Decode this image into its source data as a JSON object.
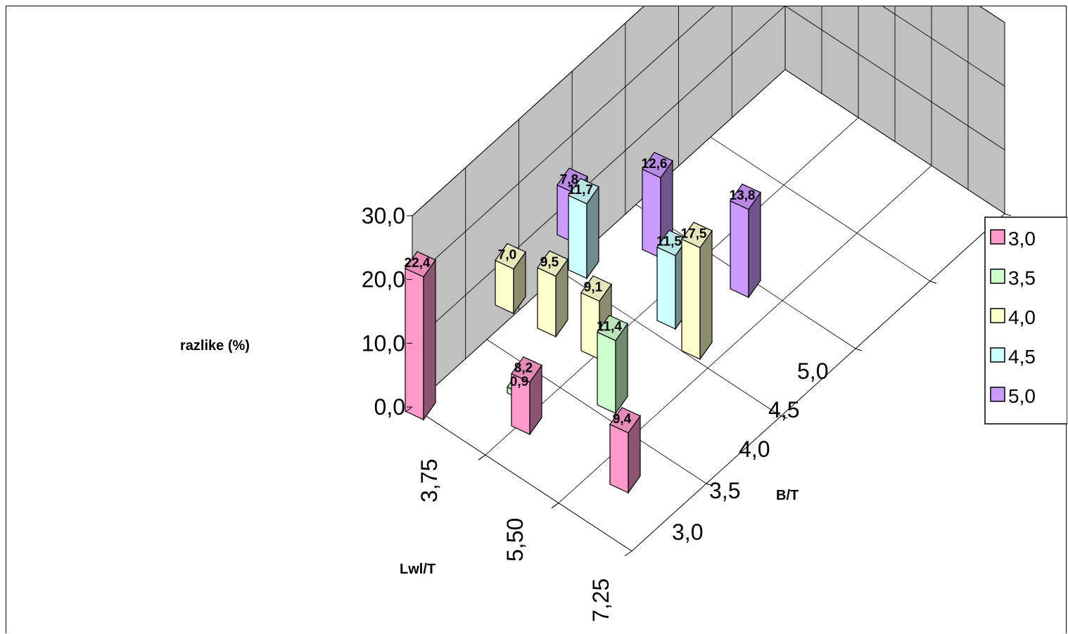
{
  "chart_data": {
    "type": "bar",
    "style": "3d-column",
    "zlabel": "razlike (%)",
    "xlabel": "Lwl/T",
    "ylabel": "B/T",
    "zlim": [
      0,
      30
    ],
    "z_ticks": [
      "0,0",
      "10,0",
      "20,0",
      "30,0"
    ],
    "x_ticks": [
      "3,75",
      "5,50",
      "7,25"
    ],
    "y_ticks": [
      "3,0",
      "3,5",
      "4,0",
      "4,5",
      "5,0"
    ],
    "grid": true,
    "legend_position": "right",
    "series": [
      {
        "name": "3,0",
        "color": "#ff99cc",
        "points": [
          {
            "x": "3,75",
            "z": 22.4,
            "label": "22,4"
          },
          {
            "x": "5,50",
            "z": 8.2,
            "label": "8,2"
          },
          {
            "x": "7,25",
            "z": 9.4,
            "label": "9,4"
          }
        ]
      },
      {
        "name": "3,5",
        "color": "#ccffcc",
        "points": [
          {
            "x": "5,50",
            "z": 0.9,
            "label": "0,9"
          },
          {
            "x": "7,25",
            "z": 11.4,
            "label": "11,4"
          }
        ]
      },
      {
        "name": "4,0",
        "color": "#ffffcc",
        "points": [
          {
            "x": "3,75",
            "z": 7.0,
            "label": "7,0"
          },
          {
            "x": "5,50",
            "z": 9.5,
            "label": "9,5"
          },
          {
            "x": "5,50",
            "z": 9.1,
            "label": "9,1"
          },
          {
            "x": "7,25",
            "z": 17.5,
            "label": "17,5"
          }
        ]
      },
      {
        "name": "4,5",
        "color": "#ccffff",
        "points": [
          {
            "x": "5,50",
            "z": 11.7,
            "label": "11,7"
          },
          {
            "x": "7,25",
            "z": 11.5,
            "label": "11,5"
          }
        ]
      },
      {
        "name": "5,0",
        "color": "#cc99ff",
        "points": [
          {
            "x": "3,75",
            "z": 7.8,
            "label": "7,8"
          },
          {
            "x": "5,50",
            "z": 12.6,
            "label": "12,6"
          },
          {
            "x": "7,25",
            "z": 13.8,
            "label": "13,8"
          }
        ]
      }
    ]
  }
}
